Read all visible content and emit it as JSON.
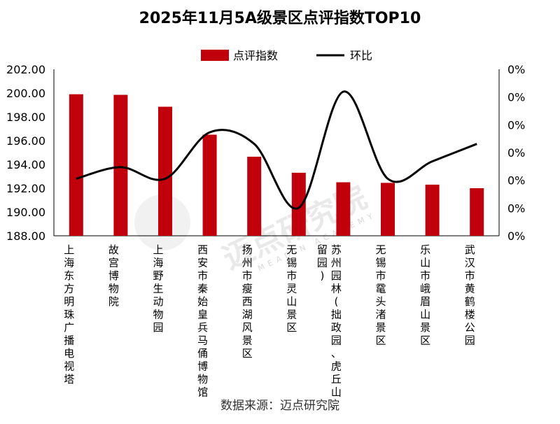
{
  "watermark": {
    "text": "迈点研究院",
    "subtext": "MEADIN ACADEMY"
  },
  "source": "数据来源：迈点研究院",
  "chart_data": {
    "type": "bar",
    "title": "2025年11月5A级景区点评指数TOP10",
    "categories": [
      "上海东方明珠广播电视塔",
      "故宫博物院",
      "上海野生动物园",
      "西安市秦始皇兵马俑博物馆",
      "扬州市瘦西湖风景区",
      "无锡市灵山景区",
      "苏州园林(拙政园、虎丘山、留园)",
      "无锡市鼋头渚景区",
      "乐山市峨眉山景区",
      "武汉市黄鹤楼公园"
    ],
    "category_lines": [
      [
        "上海东方明珠广播电视塔"
      ],
      [
        "故宫博物院"
      ],
      [
        "上海野生动物园"
      ],
      [
        "西安市秦始皇兵马俑博物馆"
      ],
      [
        "扬州市瘦西湖风景区"
      ],
      [
        "无锡市灵山景区"
      ],
      [
        "苏州园林(拙政园、虎丘山、",
        "留园)"
      ],
      [
        "无锡市鼋头渚景区"
      ],
      [
        "乐山市峨眉山景区"
      ],
      [
        "武汉市黄鹤楼公园"
      ]
    ],
    "series": [
      {
        "name": "点评指数",
        "type": "bar",
        "axis": "left",
        "color": "#c0000b",
        "values": [
          199.9,
          199.85,
          198.85,
          196.5,
          194.65,
          193.3,
          192.5,
          192.45,
          192.3,
          192.0
        ]
      },
      {
        "name": "环比",
        "type": "line",
        "axis": "right",
        "color": "#000000",
        "values": [
          0.0,
          0.2,
          0.0,
          0.8,
          0.6,
          -0.5,
          1.5,
          0.0,
          0.3,
          0.6
        ]
      }
    ],
    "left_axis": {
      "min": 188,
      "max": 202,
      "step": 2,
      "ticks": [
        "188.00",
        "190.00",
        "192.00",
        "194.00",
        "196.00",
        "198.00",
        "200.00",
        "202.00"
      ]
    },
    "right_axis": {
      "ticks": [
        "0%",
        "0%",
        "0%",
        "0%",
        "0%",
        "0%",
        "0%"
      ]
    },
    "legend_position": "top",
    "grid": false
  }
}
